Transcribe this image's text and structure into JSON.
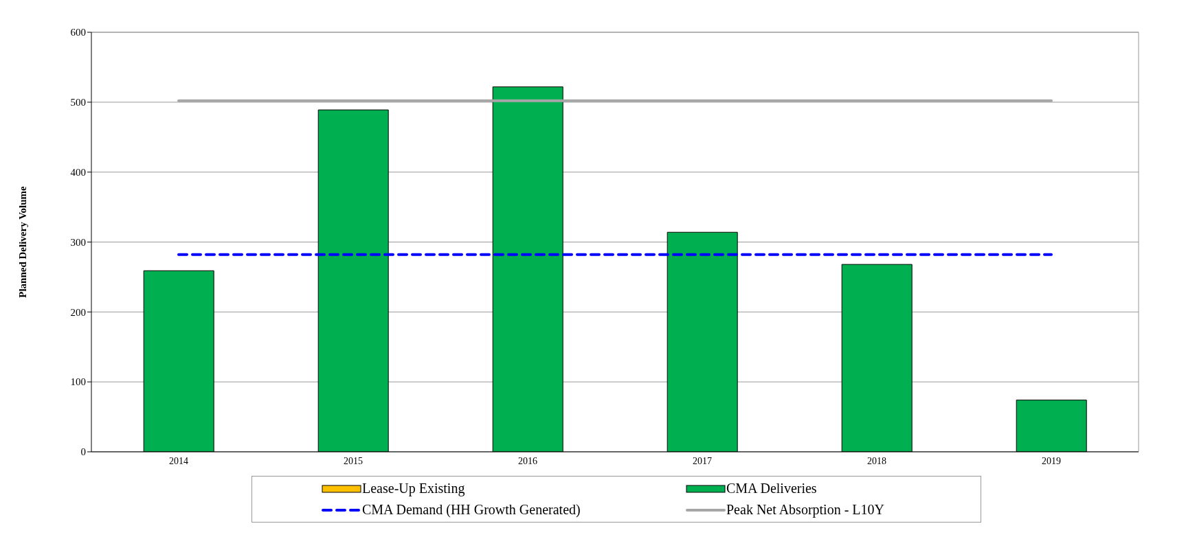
{
  "chart_data": {
    "type": "bar",
    "ylabel": "Planned Delivery Volume",
    "categories": [
      "2014",
      "2015",
      "2016",
      "2017",
      "2018",
      "2019"
    ],
    "stacked": true,
    "ylim": [
      0,
      600
    ],
    "yticks": [
      0,
      100,
      200,
      300,
      400,
      500,
      600
    ],
    "grid": "y",
    "legend": "bottom",
    "marker": "none",
    "series": [
      {
        "name": "Lease-Up Existing",
        "color": "#ffc000",
        "values": [
          0,
          0,
          0,
          0,
          0,
          0
        ]
      },
      {
        "name": "CMA Deliveries",
        "color": "#00b050",
        "values": [
          259,
          489,
          522,
          314,
          268,
          74
        ]
      },
      {
        "name": "CMA Demand (HH Growth Generated)",
        "type": "line",
        "color": "#0000ff",
        "line_style": "dashed",
        "values": [
          282,
          282,
          282,
          282,
          282,
          282
        ]
      },
      {
        "name": "Peak Net Absorption - L10Y",
        "type": "line",
        "color": "#a6a6a6",
        "line_style": "solid",
        "values": [
          502,
          502,
          502,
          502,
          502,
          502
        ]
      }
    ]
  }
}
